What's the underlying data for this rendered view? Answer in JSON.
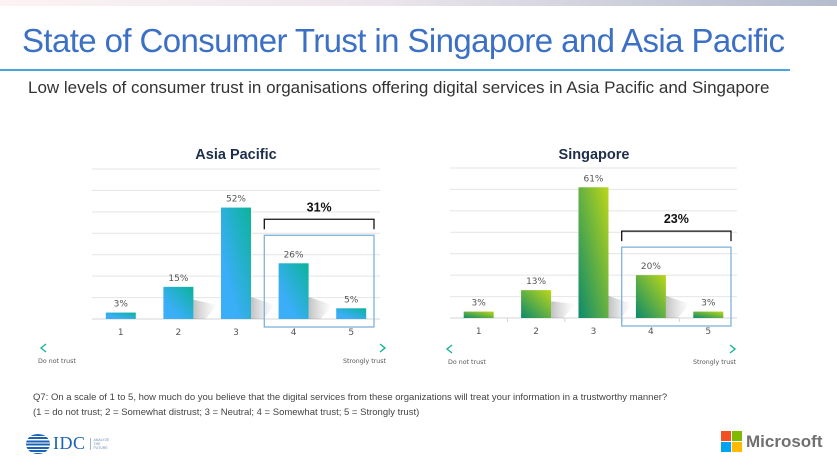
{
  "header": {
    "title": "State of Consumer Trust in Singapore and Asia Pacific",
    "subtitle": "Low levels of consumer trust in organisations offering digital services in Asia Pacific and Singapore"
  },
  "colors": {
    "title": "#3b70c4",
    "divider": "#4ba3e3",
    "ap_bar_top": "#0bb39a",
    "ap_bar_bottom": "#3aaef6",
    "sg_bar_top": "#bcd718",
    "sg_bar_bottom": "#0c8a6c",
    "highlight_box": "#7fb2db",
    "arrow": "#1ab39a"
  },
  "chart_data": [
    {
      "type": "bar",
      "title": "Asia Pacific",
      "categories": [
        "1",
        "2",
        "3",
        "4",
        "5"
      ],
      "values": [
        3,
        15,
        52,
        26,
        5
      ],
      "labels": [
        "3%",
        "15%",
        "52%",
        "26%",
        "5%"
      ],
      "ylim": [
        0,
        70
      ],
      "grid": true,
      "highlight": {
        "categories": [
          "4",
          "5"
        ],
        "label": "31%"
      },
      "axis_left_label": "Do not trust",
      "axis_right_label": "Strongly trust"
    },
    {
      "type": "bar",
      "title": "Singapore",
      "categories": [
        "1",
        "2",
        "3",
        "4",
        "5"
      ],
      "values": [
        3,
        13,
        61,
        20,
        3
      ],
      "labels": [
        "3%",
        "13%",
        "61%",
        "20%",
        "3%"
      ],
      "ylim": [
        0,
        70
      ],
      "grid": true,
      "highlight": {
        "categories": [
          "4",
          "5"
        ],
        "label": "23%"
      },
      "axis_left_label": "Do not trust",
      "axis_right_label": "Strongly trust"
    }
  ],
  "footnote": {
    "line1": "Q7: On a scale of 1 to 5, how much do you believe that the digital services from these organizations will treat your information in a trustworthy manner?",
    "line2": "(1 = do not trust; 2 = Somewhat distrust; 3 = Neutral; 4 = Somewhat trust; 5 = Strongly trust)"
  },
  "logos": {
    "idc": {
      "name": "IDC",
      "tagline": "ANALYZE THE FUTURE"
    },
    "microsoft": {
      "name": "Microsoft",
      "colors": [
        "#f25022",
        "#7fba00",
        "#00a4ef",
        "#ffb900"
      ]
    }
  }
}
